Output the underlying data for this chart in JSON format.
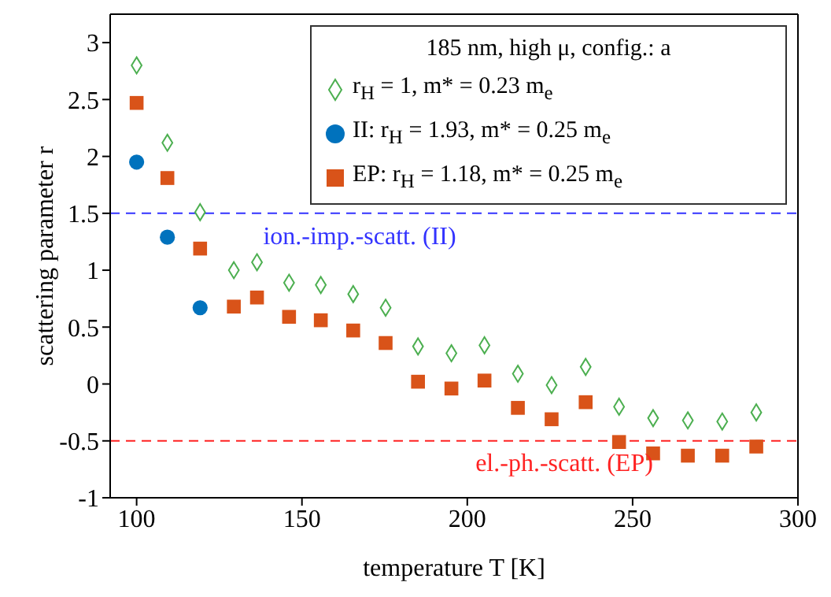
{
  "chart_data": {
    "type": "scatter",
    "xlabel": "temperature T [K]",
    "ylabel": "scattering parameter r",
    "legend_title": "185 nm, high μ, config.: a",
    "legend": "top right",
    "grid": false,
    "xlim": [
      92,
      300
    ],
    "xticks": [
      100,
      150,
      200,
      250,
      300
    ],
    "ylim": [
      -1,
      3.25
    ],
    "yticks": [
      -1,
      -0.5,
      0,
      0.5,
      1,
      1.5,
      2,
      2.5,
      3
    ],
    "series": [
      {
        "name": "r$_{H}$ = 1, m* = 0.23 m$_{e}$",
        "color": "#4caf50",
        "marker": "diamond",
        "x": [
          100,
          109.3,
          119.2,
          129.4,
          136.4,
          146.1,
          155.7,
          165.5,
          175.3,
          185.1,
          195.2,
          205.2,
          215.3,
          225.5,
          235.8,
          245.9,
          256.2,
          266.7,
          277.1,
          287.4
        ],
        "values": [
          2.8,
          2.12,
          1.51,
          1.0,
          1.07,
          0.89,
          0.87,
          0.79,
          0.67,
          0.33,
          0.27,
          0.34,
          0.09,
          -0.01,
          0.15,
          -0.2,
          -0.3,
          -0.32,
          -0.33,
          -0.25
        ]
      },
      {
        "name": "II: r$_{H}$ = 1.93, m* = 0.25 m$_{e}$",
        "color": "#0072bd",
        "marker": "circle",
        "x": [
          100,
          109.3,
          119.2
        ],
        "values": [
          1.95,
          1.29,
          0.67
        ]
      },
      {
        "name": "EP: r$_{H}$ = 1.18, m* = 0.25 m$_{e}$",
        "color": "#d95319",
        "marker": "square",
        "x": [
          100,
          109.3,
          119.2,
          129.4,
          136.4,
          146.1,
          155.7,
          165.5,
          175.3,
          185.1,
          195.2,
          205.2,
          215.3,
          225.5,
          235.8,
          245.9,
          256.2,
          266.7,
          277.1,
          287.4
        ],
        "values": [
          2.47,
          1.81,
          1.19,
          0.68,
          0.76,
          0.59,
          0.56,
          0.47,
          0.36,
          0.02,
          -0.04,
          0.03,
          -0.21,
          -0.31,
          -0.16,
          -0.51,
          -0.61,
          -0.63,
          -0.63,
          -0.55
        ]
      }
    ],
    "ref_lines": [
      {
        "axis": "y",
        "value": 1.5,
        "label": "ion.-imp.-scatt. (II)",
        "color": "#3333ff",
        "line_style": "dashed"
      },
      {
        "axis": "y",
        "value": -0.5,
        "label": "el.-ph.-scatt. (EP)",
        "color": "#ff2222",
        "line_style": "dashed"
      }
    ]
  }
}
